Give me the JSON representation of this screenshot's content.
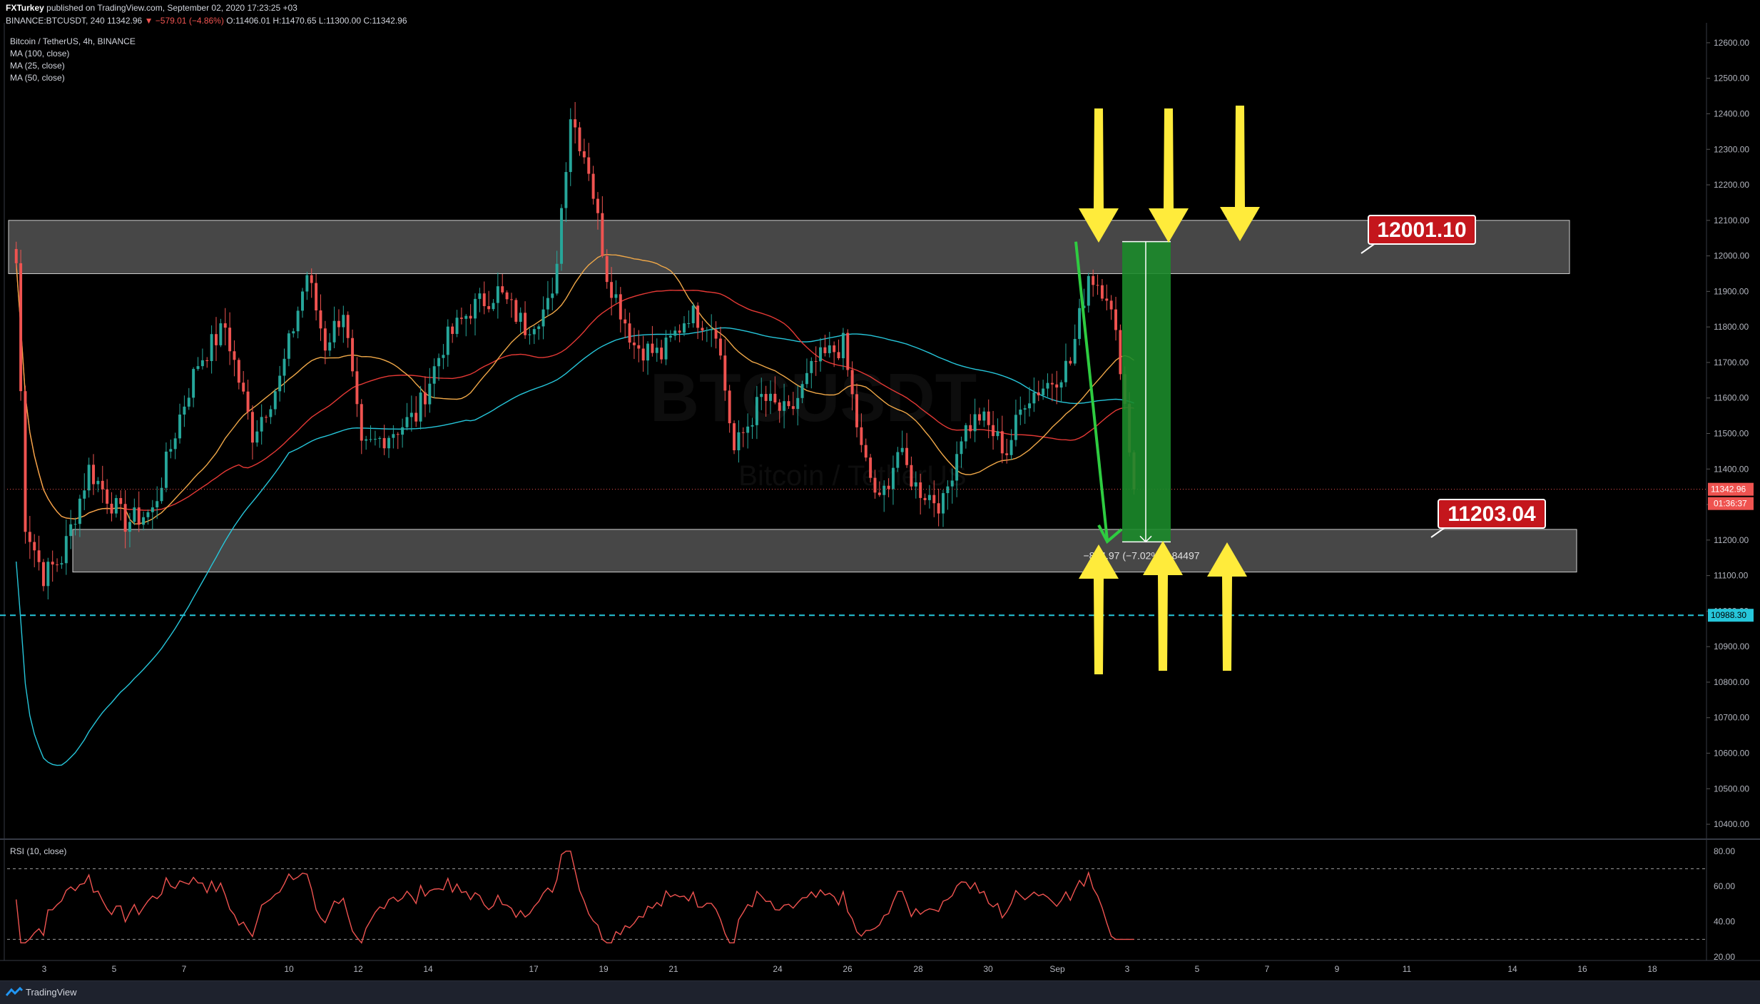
{
  "header": {
    "publisher": "FXTurkey",
    "published_text": "published on TradingView.com, September 02, 2020 17:23:25 +03",
    "symbol_line_prefix": "BINANCE:BTCUSDT, 240",
    "last": "11342.96",
    "change": "▼ −579.01 (−4.86%)",
    "ohlc": "O:11406.01 H:11470.65 L:11300.00 C:11342.96"
  },
  "legend": {
    "title": "Bitcoin / TetherUS, 4h, BINANCE",
    "items": [
      "MA (100, close)",
      "MA (25, close)",
      "MA (50, close)"
    ]
  },
  "watermark": {
    "symbol": "BTCUSDT",
    "name": "Bitcoin / TetherUS"
  },
  "rsi": {
    "label": "RSI (10, close)"
  },
  "footer": {
    "brand": "TradingView"
  },
  "colors": {
    "up": "#26a69a",
    "down": "#ef5350",
    "ma100": "#26c6da",
    "ma25": "#f0a848",
    "ma50": "#e53935",
    "zone": "#ffffff",
    "arrow": "#ffeb3b",
    "green_arrow": "#2ecc40",
    "measure": "#1b8a2a",
    "label_red": "#c4161c",
    "hline": "#26c6da",
    "rsi": "#ef5350"
  },
  "chart_data": {
    "type": "candlestick",
    "price_axis": {
      "ticks": [
        "12600.00",
        "12500.00",
        "12400.00",
        "12300.00",
        "12200.00",
        "12100.00",
        "12000.00",
        "11900.00",
        "11800.00",
        "11700.00",
        "11600.00",
        "11500.00",
        "11400.00",
        "11300.00",
        "11200.00",
        "11100.00",
        "11000.00",
        "10900.00",
        "10800.00",
        "10700.00",
        "10600.00",
        "10500.00",
        "10400.00"
      ],
      "range": [
        10360,
        12640
      ],
      "tick_values": [
        12600,
        12500,
        12400,
        12300,
        12200,
        12100,
        12000,
        11900,
        11800,
        11700,
        11600,
        11500,
        11400,
        11300,
        11200,
        11100,
        11000,
        10900,
        10800,
        10700,
        10600,
        10500,
        10400
      ]
    },
    "time_axis": {
      "labels": [
        "3",
        "5",
        "7",
        "10",
        "12",
        "14",
        "17",
        "19",
        "21",
        "24",
        "26",
        "28",
        "30",
        "Sep",
        "3",
        "5",
        "7",
        "9",
        "11",
        "14",
        "16",
        "18"
      ]
    },
    "resistance_zone": {
      "from": 11950,
      "to": 12100,
      "label": "12001.10"
    },
    "support_zone": {
      "from": 11110,
      "to": 11230,
      "label": "11203.04"
    },
    "horizontal_line": {
      "value": 10988.3,
      "label": "10988.30"
    },
    "last_price_label": "11342.96",
    "countdown_label": "01:36:37",
    "measure": {
      "from": 12040,
      "to": 11195,
      "text": "−844.97 (−7.02%) −84497"
    },
    "green_arrow": {
      "from": 12040,
      "to": 11250
    },
    "rsi_axis": {
      "ticks": [
        "80.00",
        "60.00",
        "40.00",
        "20.00"
      ],
      "range": [
        18,
        86
      ],
      "tick_values": [
        80,
        60,
        40,
        20
      ],
      "levels": [
        70,
        30
      ]
    },
    "anchors": [
      {
        "i": 0,
        "v": 11980
      },
      {
        "i": 2,
        "v": 11250
      },
      {
        "i": 6,
        "v": 11100
      },
      {
        "i": 10,
        "v": 11150
      },
      {
        "i": 16,
        "v": 11400
      },
      {
        "i": 24,
        "v": 11250
      },
      {
        "i": 30,
        "v": 11280
      },
      {
        "i": 36,
        "v": 11550
      },
      {
        "i": 40,
        "v": 11700
      },
      {
        "i": 46,
        "v": 11800
      },
      {
        "i": 52,
        "v": 11500
      },
      {
        "i": 58,
        "v": 11650
      },
      {
        "i": 64,
        "v": 11950
      },
      {
        "i": 68,
        "v": 11750
      },
      {
        "i": 72,
        "v": 11850
      },
      {
        "i": 76,
        "v": 11450
      },
      {
        "i": 82,
        "v": 11500
      },
      {
        "i": 88,
        "v": 11550
      },
      {
        "i": 94,
        "v": 11750
      },
      {
        "i": 100,
        "v": 11850
      },
      {
        "i": 106,
        "v": 11900
      },
      {
        "i": 112,
        "v": 11800
      },
      {
        "i": 118,
        "v": 11870
      },
      {
        "i": 122,
        "v": 12400
      },
      {
        "i": 126,
        "v": 12250
      },
      {
        "i": 130,
        "v": 11950
      },
      {
        "i": 136,
        "v": 11750
      },
      {
        "i": 142,
        "v": 11720
      },
      {
        "i": 148,
        "v": 11840
      },
      {
        "i": 154,
        "v": 11800
      },
      {
        "i": 158,
        "v": 11450
      },
      {
        "i": 164,
        "v": 11600
      },
      {
        "i": 170,
        "v": 11550
      },
      {
        "i": 176,
        "v": 11700
      },
      {
        "i": 182,
        "v": 11750
      },
      {
        "i": 186,
        "v": 11450
      },
      {
        "i": 190,
        "v": 11300
      },
      {
        "i": 194,
        "v": 11450
      },
      {
        "i": 198,
        "v": 11350
      },
      {
        "i": 204,
        "v": 11300
      },
      {
        "i": 208,
        "v": 11500
      },
      {
        "i": 212,
        "v": 11550
      },
      {
        "i": 218,
        "v": 11450
      },
      {
        "i": 222,
        "v": 11600
      },
      {
        "i": 228,
        "v": 11650
      },
      {
        "i": 232,
        "v": 11700
      },
      {
        "i": 236,
        "v": 11950
      },
      {
        "i": 240,
        "v": 11900
      },
      {
        "i": 243,
        "v": 11700
      },
      {
        "i": 246,
        "v": 11342.96
      }
    ],
    "time_range": [
      -2,
      372
    ]
  }
}
